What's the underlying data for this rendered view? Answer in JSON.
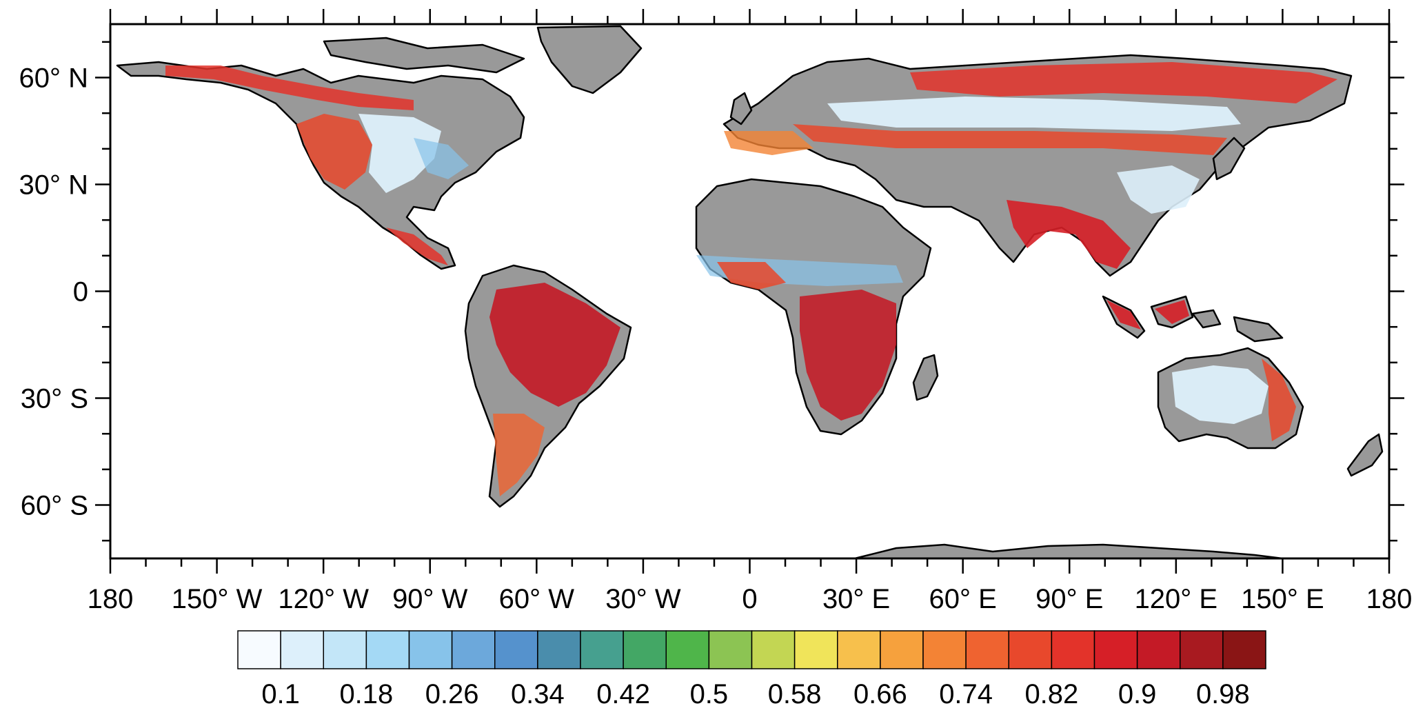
{
  "map": {
    "projection": "equirectangular",
    "lon_range": [
      -180,
      180
    ],
    "lat_range": [
      -75,
      75
    ],
    "land_color": "#999999",
    "ocean_color": "#ffffff",
    "coastline_color": "#000000"
  },
  "axes": {
    "y_ticks": [
      {
        "value": 60,
        "label": "60° N"
      },
      {
        "value": 30,
        "label": "30° N"
      },
      {
        "value": 0,
        "label": "0"
      },
      {
        "value": -30,
        "label": "30° S"
      },
      {
        "value": -60,
        "label": "60° S"
      }
    ],
    "x_ticks": [
      {
        "value": -180,
        "label": "180"
      },
      {
        "value": -150,
        "label": "150° W"
      },
      {
        "value": -120,
        "label": "120° W"
      },
      {
        "value": -90,
        "label": "90° W"
      },
      {
        "value": -60,
        "label": "60° W"
      },
      {
        "value": -30,
        "label": "30° W"
      },
      {
        "value": 0,
        "label": "0"
      },
      {
        "value": 30,
        "label": "30° E"
      },
      {
        "value": 60,
        "label": "60° E"
      },
      {
        "value": 90,
        "label": "90° E"
      },
      {
        "value": 120,
        "label": "120° E"
      },
      {
        "value": 150,
        "label": "150° E"
      },
      {
        "value": 180,
        "label": "180"
      }
    ]
  },
  "colorbar": {
    "colors": [
      "#f7fbff",
      "#ddf0fb",
      "#c3e6f8",
      "#a4d9f5",
      "#87c3ea",
      "#6ca8db",
      "#5592cd",
      "#4a8dac",
      "#46a08f",
      "#43a765",
      "#4fb54a",
      "#8cc453",
      "#c3d653",
      "#f0e45a",
      "#f7c04c",
      "#f6a13d",
      "#f38335",
      "#ef6330",
      "#e8482c",
      "#e3332a",
      "#d61f27",
      "#c41a26",
      "#a81a20",
      "#8a1515"
    ],
    "labels": [
      "0.1",
      "0.18",
      "0.26",
      "0.34",
      "0.42",
      "0.5",
      "0.58",
      "0.66",
      "0.74",
      "0.82",
      "0.9",
      "0.98"
    ]
  }
}
